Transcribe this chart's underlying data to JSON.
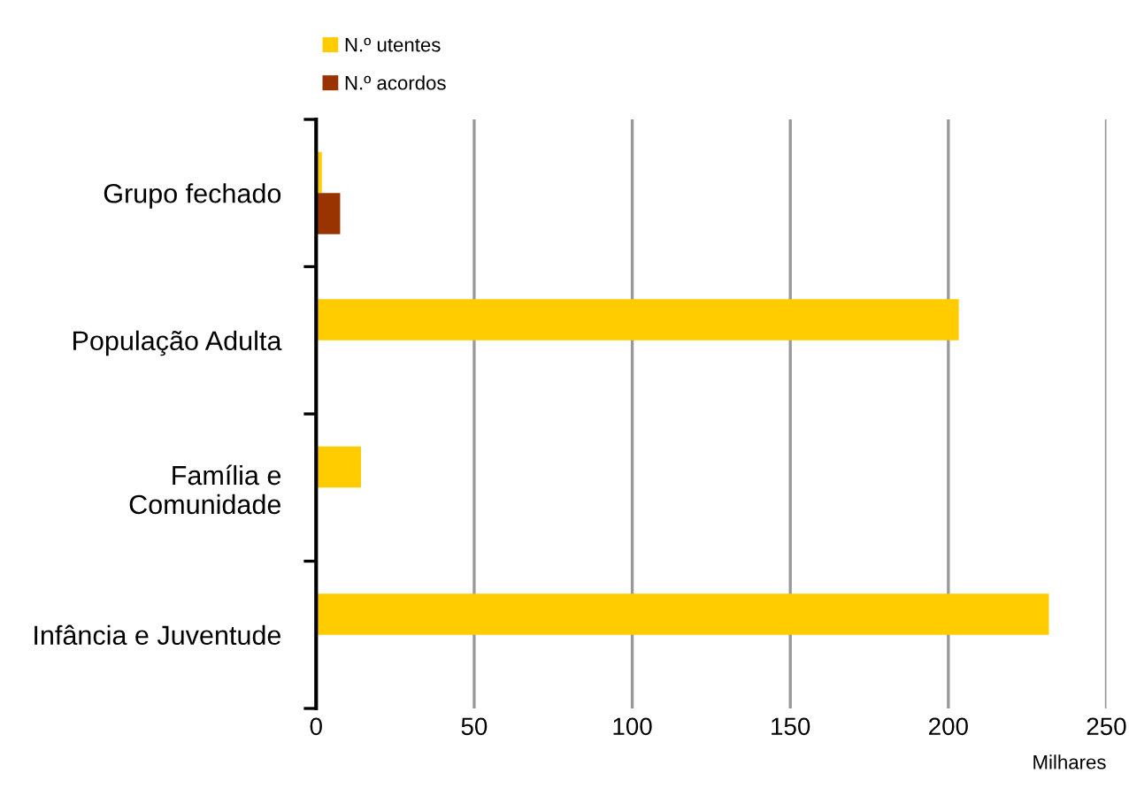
{
  "chart_data": {
    "type": "bar",
    "orientation": "horizontal",
    "categories": [
      "Grupo fechado",
      "População Adulta",
      "Família e\nComunidade",
      "Infância e Juventude"
    ],
    "series": [
      {
        "name": "N.º utentes",
        "color": "#ffcc00",
        "values": [
          1.8,
          203.3,
          14.2,
          231.8
        ]
      },
      {
        "name": "N.º acordos",
        "color": "#993300",
        "values": [
          7.6,
          0,
          null,
          0
        ]
      }
    ],
    "xlim": [
      0,
      250
    ],
    "xticks": [
      0,
      50,
      100,
      150,
      200,
      250
    ],
    "xlabel": "Milhares",
    "grid": "x",
    "legend": "top left"
  }
}
